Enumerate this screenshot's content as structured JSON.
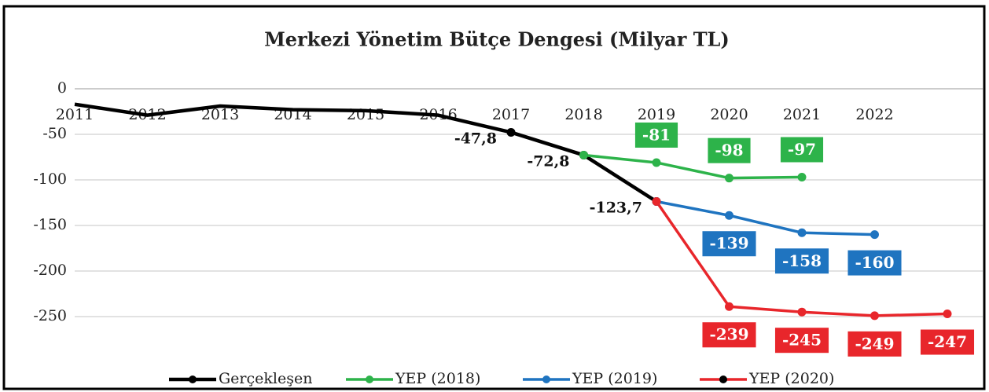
{
  "chart_data": {
    "type": "line",
    "title": "Merkezi Yönetim Bütçe Dengesi  (Milyar TL)",
    "categories": [
      "2011",
      "2012",
      "2013",
      "2014",
      "2015",
      "2016",
      "2017",
      "2018",
      "2019",
      "2020",
      "2021",
      "2022",
      null
    ],
    "ylim": [
      -300,
      0
    ],
    "yticks": [
      0,
      -50,
      -100,
      -150,
      -200,
      -250
    ],
    "grid": true,
    "legend": "bottom",
    "series": [
      {
        "name": "Gerçekleşen",
        "color": "#000000",
        "values": [
          -17,
          -29,
          -19,
          -23,
          -24,
          -29,
          -47.8,
          -72.8,
          -123.7,
          null,
          null,
          null,
          null
        ],
        "value_labels": [
          null,
          null,
          null,
          null,
          null,
          null,
          "-47,8",
          "-72,8",
          "-123,7",
          null,
          null,
          null,
          null
        ],
        "label_position": "left"
      },
      {
        "name": "YEP (2018)",
        "color": "#2db34a",
        "values": [
          null,
          null,
          null,
          null,
          null,
          null,
          null,
          -72.8,
          -81,
          -98,
          -97,
          null,
          null
        ],
        "label_position": "above"
      },
      {
        "name": "YEP (2019)",
        "color": "#1f74c0",
        "values": [
          null,
          null,
          null,
          null,
          null,
          null,
          null,
          null,
          -123.7,
          -139,
          -158,
          -160,
          null
        ],
        "label_position": "below"
      },
      {
        "name": "YEP (2020)",
        "color": "#e8262b",
        "values": [
          null,
          null,
          null,
          null,
          null,
          null,
          null,
          null,
          -123.7,
          -239,
          -245,
          -249,
          -247
        ],
        "label_position": "below"
      }
    ]
  }
}
